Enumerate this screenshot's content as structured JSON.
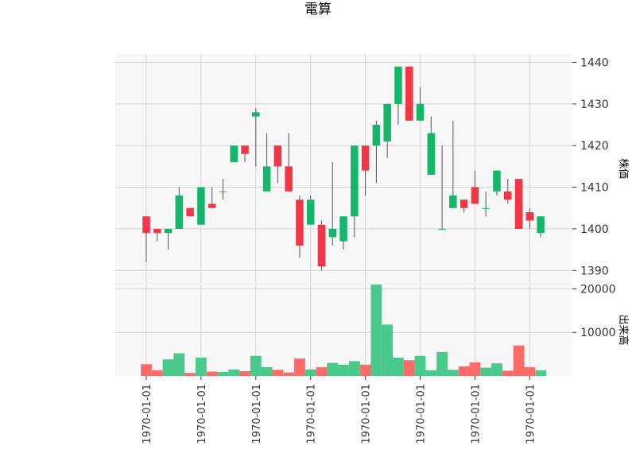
{
  "chart_data": {
    "type": "candlestick",
    "title": "電算",
    "colors": {
      "up": "#12b76a",
      "down": "#f23645",
      "volume_up": "#49c98c",
      "volume_down": "#ff6b6b",
      "wick": "#555555",
      "panel_bg": "#f7f7f7",
      "grid": "#d3d3d3"
    },
    "price_panel": {
      "ylabel": "株価",
      "ylim": [
        1387,
        1442
      ],
      "yticks": [
        1390,
        1400,
        1410,
        1420,
        1430,
        1440
      ],
      "grid": true,
      "axis_position": "right"
    },
    "volume_panel": {
      "ylabel": "出来高",
      "ylim": [
        0,
        21000
      ],
      "yticks": [
        10000,
        20000
      ],
      "grid": true,
      "axis_position": "right"
    },
    "x_tick_labels": [
      {
        "index": 0,
        "label": "1970-01-01"
      },
      {
        "index": 5,
        "label": "1970-01-01"
      },
      {
        "index": 10,
        "label": "1970-01-01"
      },
      {
        "index": 15,
        "label": "1970-01-01"
      },
      {
        "index": 20,
        "label": "1970-01-01"
      },
      {
        "index": 25,
        "label": "1970-01-01"
      },
      {
        "index": 30,
        "label": "1970-01-01"
      },
      {
        "index": 35,
        "label": "1970-01-01"
      }
    ],
    "candles": [
      {
        "open": 1403,
        "high": 1403,
        "low": 1392,
        "close": 1399,
        "volume": 2700
      },
      {
        "open": 1400,
        "high": 1400,
        "low": 1397,
        "close": 1399,
        "volume": 1300
      },
      {
        "open": 1399,
        "high": 1400,
        "low": 1395,
        "close": 1400,
        "volume": 3800
      },
      {
        "open": 1400,
        "high": 1410,
        "low": 1400,
        "close": 1408,
        "volume": 5200
      },
      {
        "open": 1405,
        "high": 1405,
        "low": 1403,
        "close": 1403,
        "volume": 700
      },
      {
        "open": 1401,
        "high": 1410,
        "low": 1401,
        "close": 1410,
        "volume": 4200
      },
      {
        "open": 1406,
        "high": 1410,
        "low": 1405,
        "close": 1405,
        "volume": 1000
      },
      {
        "open": 1409,
        "high": 1412,
        "low": 1407,
        "close": 1409,
        "volume": 900
      },
      {
        "open": 1416,
        "high": 1420,
        "low": 1416,
        "close": 1420,
        "volume": 1500
      },
      {
        "open": 1420,
        "high": 1420,
        "low": 1416,
        "close": 1418,
        "volume": 1100
      },
      {
        "open": 1427,
        "high": 1429,
        "low": 1415,
        "close": 1428,
        "volume": 4600
      },
      {
        "open": 1409,
        "high": 1423,
        "low": 1409,
        "close": 1415,
        "volume": 2000
      },
      {
        "open": 1420,
        "high": 1420,
        "low": 1411,
        "close": 1415,
        "volume": 1400
      },
      {
        "open": 1415,
        "high": 1423,
        "low": 1409,
        "close": 1409,
        "volume": 800
      },
      {
        "open": 1407,
        "high": 1408,
        "low": 1393,
        "close": 1396,
        "volume": 4000
      },
      {
        "open": 1401,
        "high": 1408,
        "low": 1401,
        "close": 1407,
        "volume": 1500
      },
      {
        "open": 1401,
        "high": 1402,
        "low": 1390,
        "close": 1391,
        "volume": 2000
      },
      {
        "open": 1398,
        "high": 1416,
        "low": 1396,
        "close": 1400,
        "volume": 3000
      },
      {
        "open": 1397,
        "high": 1403,
        "low": 1395,
        "close": 1403,
        "volume": 2600
      },
      {
        "open": 1403,
        "high": 1420,
        "low": 1398,
        "close": 1420,
        "volume": 3400
      },
      {
        "open": 1420,
        "high": 1420,
        "low": 1408,
        "close": 1414,
        "volume": 2600
      },
      {
        "open": 1420,
        "high": 1426,
        "low": 1411,
        "close": 1425,
        "volume": 21000
      },
      {
        "open": 1421,
        "high": 1430,
        "low": 1417,
        "close": 1430,
        "volume": 11800
      },
      {
        "open": 1430,
        "high": 1439,
        "low": 1425,
        "close": 1439,
        "volume": 4200
      },
      {
        "open": 1439,
        "high": 1439,
        "low": 1426,
        "close": 1426,
        "volume": 3600
      },
      {
        "open": 1426,
        "high": 1434,
        "low": 1426,
        "close": 1430,
        "volume": 4600
      },
      {
        "open": 1413,
        "high": 1427,
        "low": 1413,
        "close": 1423,
        "volume": 1300
      },
      {
        "open": 1400,
        "high": 1420,
        "low": 1400,
        "close": 1400,
        "volume": 5500
      },
      {
        "open": 1405,
        "high": 1426,
        "low": 1405,
        "close": 1408,
        "volume": 1400
      },
      {
        "open": 1407,
        "high": 1407,
        "low": 1404,
        "close": 1405,
        "volume": 2200
      },
      {
        "open": 1410,
        "high": 1414,
        "low": 1406,
        "close": 1406,
        "volume": 3100
      },
      {
        "open": 1405,
        "high": 1409,
        "low": 1403,
        "close": 1405,
        "volume": 1900
      },
      {
        "open": 1409,
        "high": 1414,
        "low": 1408,
        "close": 1414,
        "volume": 2900
      },
      {
        "open": 1409,
        "high": 1412,
        "low": 1406,
        "close": 1407,
        "volume": 1200
      },
      {
        "open": 1412,
        "high": 1412,
        "low": 1400,
        "close": 1400,
        "volume": 7000
      },
      {
        "open": 1404,
        "high": 1405,
        "low": 1400,
        "close": 1402,
        "volume": 2000
      },
      {
        "open": 1399,
        "high": 1403,
        "low": 1398,
        "close": 1403,
        "volume": 1300
      }
    ]
  }
}
